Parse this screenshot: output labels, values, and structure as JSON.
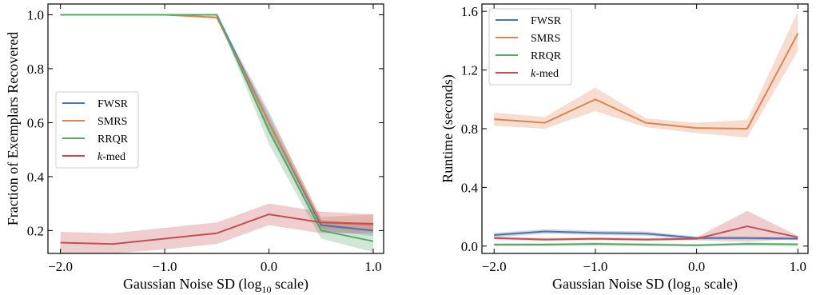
{
  "chart_data": [
    {
      "type": "line",
      "xlabel": "Gaussian Noise SD (log",
      "xlabel_sub": "10",
      "xlabel_tail": " scale)",
      "ylabel": "Fraction of Exemplars Recovered",
      "x": [
        -2.0,
        -1.5,
        -1.0,
        -0.5,
        0.0,
        0.5,
        1.0
      ],
      "xticks": [
        -2.0,
        -1.0,
        0.0,
        1.0
      ],
      "xtick_labels": [
        "−2.0",
        "−1.0",
        "0.0",
        "1.0"
      ],
      "xlim": [
        -2.12,
        1.1
      ],
      "yticks": [
        0.2,
        0.4,
        0.6,
        0.8,
        1.0
      ],
      "ytick_labels": [
        "0.2",
        "0.4",
        "0.6",
        "0.8",
        "1.0"
      ],
      "ylim": [
        0.115,
        1.04
      ],
      "grid": false,
      "legend_position": "center-left",
      "series": [
        {
          "name": "FWSR",
          "color": "#4c72b0",
          "values": [
            1.0,
            1.0,
            1.0,
            1.0,
            0.6,
            0.22,
            0.2
          ],
          "lower": [
            1.0,
            1.0,
            1.0,
            1.0,
            0.56,
            0.2,
            0.18
          ],
          "upper": [
            1.0,
            1.0,
            1.0,
            1.0,
            0.64,
            0.24,
            0.22
          ]
        },
        {
          "name": "SMRS",
          "color": "#dd8452",
          "values": [
            1.0,
            1.0,
            1.0,
            0.99,
            0.6,
            0.23,
            0.22
          ],
          "lower": [
            1.0,
            1.0,
            1.0,
            0.985,
            0.57,
            0.21,
            0.2
          ],
          "upper": [
            1.0,
            1.0,
            1.0,
            0.995,
            0.63,
            0.25,
            0.26
          ]
        },
        {
          "name": "RRQR",
          "color": "#55a868",
          "values": [
            1.0,
            1.0,
            1.0,
            1.0,
            0.57,
            0.2,
            0.16
          ],
          "lower": [
            1.0,
            1.0,
            1.0,
            1.0,
            0.52,
            0.17,
            0.12
          ],
          "upper": [
            1.0,
            1.0,
            1.0,
            1.0,
            0.62,
            0.23,
            0.2
          ]
        },
        {
          "name": "k-med",
          "name_italic": "k",
          "name_rest": "-med",
          "color": "#c44e52",
          "values": [
            0.155,
            0.15,
            0.17,
            0.19,
            0.26,
            0.23,
            0.225
          ],
          "lower": [
            0.115,
            0.115,
            0.13,
            0.15,
            0.22,
            0.19,
            0.19
          ],
          "upper": [
            0.195,
            0.19,
            0.21,
            0.23,
            0.3,
            0.27,
            0.26
          ]
        }
      ]
    },
    {
      "type": "line",
      "xlabel": "Gaussian Noise SD (log",
      "xlabel_sub": "10",
      "xlabel_tail": " scale)",
      "ylabel": "Runtime (seconds)",
      "x": [
        -2.0,
        -1.5,
        -1.0,
        -0.5,
        0.0,
        0.5,
        1.0
      ],
      "xticks": [
        -2.0,
        -1.0,
        0.0,
        1.0
      ],
      "xtick_labels": [
        "−2.0",
        "−1.0",
        "0.0",
        "1.0"
      ],
      "xlim": [
        -2.12,
        1.1
      ],
      "yticks": [
        0.0,
        0.4,
        0.8,
        1.2,
        1.6
      ],
      "ytick_labels": [
        "0.0",
        "0.4",
        "0.8",
        "1.2",
        "1.6"
      ],
      "ylim": [
        -0.05,
        1.65
      ],
      "grid": false,
      "legend_position": "top-left",
      "series": [
        {
          "name": "FWSR",
          "color": "#4c72b0",
          "values": [
            0.075,
            0.1,
            0.09,
            0.085,
            0.055,
            0.055,
            0.05
          ],
          "lower": [
            0.06,
            0.085,
            0.075,
            0.07,
            0.045,
            0.045,
            0.04
          ],
          "upper": [
            0.09,
            0.115,
            0.105,
            0.1,
            0.065,
            0.065,
            0.06
          ]
        },
        {
          "name": "SMRS",
          "color": "#dd8452",
          "values": [
            0.865,
            0.84,
            1.0,
            0.84,
            0.805,
            0.8,
            1.45
          ],
          "lower": [
            0.82,
            0.8,
            0.92,
            0.81,
            0.77,
            0.74,
            1.33
          ],
          "upper": [
            0.91,
            0.88,
            1.08,
            0.87,
            0.84,
            0.86,
            1.6
          ]
        },
        {
          "name": "RRQR",
          "color": "#55a868",
          "values": [
            0.01,
            0.01,
            0.015,
            0.01,
            0.005,
            0.015,
            0.012
          ],
          "lower": [
            0.0,
            0.0,
            0.005,
            0.0,
            0.0,
            0.005,
            0.0
          ],
          "upper": [
            0.02,
            0.02,
            0.025,
            0.02,
            0.015,
            0.025,
            0.02
          ]
        },
        {
          "name": "k-med",
          "name_italic": "k",
          "name_rest": "-med",
          "color": "#c44e52",
          "values": [
            0.055,
            0.045,
            0.05,
            0.045,
            0.05,
            0.135,
            0.06
          ],
          "lower": [
            0.045,
            0.035,
            0.04,
            0.035,
            0.04,
            0.03,
            0.05
          ],
          "upper": [
            0.065,
            0.055,
            0.06,
            0.055,
            0.06,
            0.24,
            0.07
          ]
        }
      ]
    }
  ]
}
